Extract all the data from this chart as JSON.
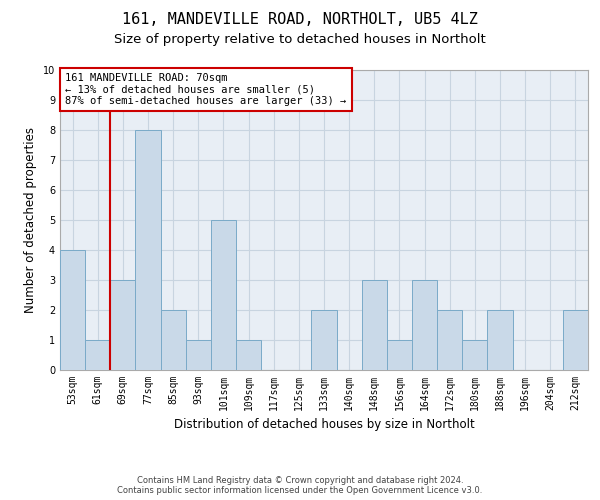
{
  "title1": "161, MANDEVILLE ROAD, NORTHOLT, UB5 4LZ",
  "title2": "Size of property relative to detached houses in Northolt",
  "xlabel": "Distribution of detached houses by size in Northolt",
  "ylabel": "Number of detached properties",
  "categories": [
    "53sqm",
    "61sqm",
    "69sqm",
    "77sqm",
    "85sqm",
    "93sqm",
    "101sqm",
    "109sqm",
    "117sqm",
    "125sqm",
    "133sqm",
    "140sqm",
    "148sqm",
    "156sqm",
    "164sqm",
    "172sqm",
    "180sqm",
    "188sqm",
    "196sqm",
    "204sqm",
    "212sqm"
  ],
  "values": [
    4,
    1,
    3,
    8,
    2,
    1,
    5,
    1,
    0,
    0,
    2,
    0,
    3,
    1,
    3,
    2,
    1,
    2,
    0,
    0,
    2
  ],
  "bar_color": "#c9d9e8",
  "bar_edge_color": "#7aaac8",
  "highlight_line_color": "#cc0000",
  "annotation_text": "161 MANDEVILLE ROAD: 70sqm\n← 13% of detached houses are smaller (5)\n87% of semi-detached houses are larger (33) →",
  "annotation_box_color": "#ffffff",
  "annotation_box_edge_color": "#cc0000",
  "ylim": [
    0,
    10
  ],
  "yticks": [
    0,
    1,
    2,
    3,
    4,
    5,
    6,
    7,
    8,
    9,
    10
  ],
  "grid_color": "#c8d4e0",
  "background_color": "#e8eef5",
  "footer_line1": "Contains HM Land Registry data © Crown copyright and database right 2024.",
  "footer_line2": "Contains public sector information licensed under the Open Government Licence v3.0.",
  "title1_fontsize": 11,
  "title2_fontsize": 9.5,
  "tick_fontsize": 7,
  "ylabel_fontsize": 8.5,
  "xlabel_fontsize": 8.5,
  "annotation_fontsize": 7.5,
  "footer_fontsize": 6
}
